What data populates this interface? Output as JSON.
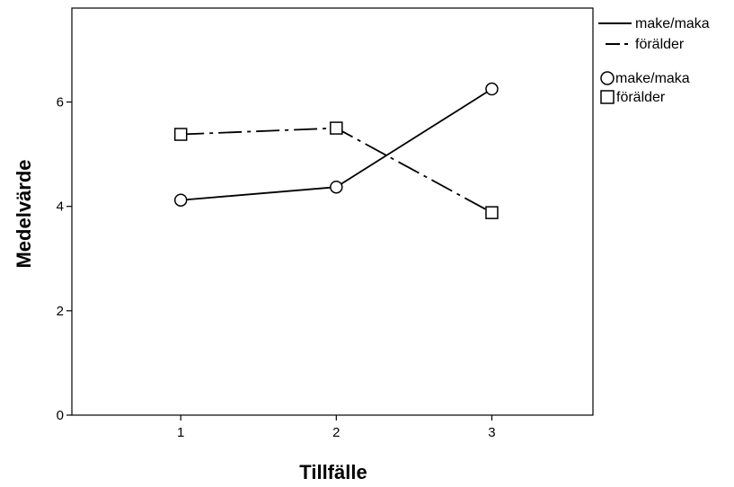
{
  "chart_data": {
    "type": "line",
    "title": "",
    "xlabel": "Tillfälle",
    "ylabel": "Medelvärde",
    "categories": [
      "1",
      "2",
      "3"
    ],
    "x": [
      1,
      2,
      3
    ],
    "xlim": [
      0.3,
      3.65
    ],
    "ylim": [
      0,
      7.8
    ],
    "yticks": [
      0,
      2,
      4,
      6
    ],
    "ytick_labels": [
      "0",
      "2",
      "4",
      "6"
    ],
    "grid": false,
    "legend_position": "top-right outside plot",
    "series": [
      {
        "name": "make/maka",
        "values": [
          4.12,
          4.37,
          6.25
        ],
        "line_style": "solid",
        "marker": "circle"
      },
      {
        "name": "förälder",
        "values": [
          5.38,
          5.5,
          3.88
        ],
        "line_style": "dash-dot",
        "marker": "square"
      }
    ]
  }
}
